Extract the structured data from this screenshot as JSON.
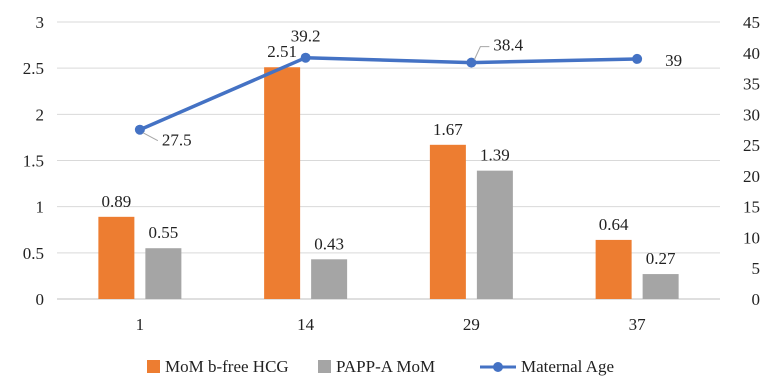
{
  "chart_data": {
    "type": "bar",
    "categories": [
      "1",
      "14",
      "29",
      "37"
    ],
    "series": [
      {
        "name": "MoM b-free HCG",
        "kind": "bar",
        "axis": "left",
        "color": "#ed7d31",
        "values": [
          0.89,
          2.51,
          1.67,
          0.64
        ],
        "labels": [
          "0.89",
          "2.51",
          "1.67",
          "0.64"
        ]
      },
      {
        "name": "PAPP-A MoM",
        "kind": "bar",
        "axis": "left",
        "color": "#a5a5a5",
        "values": [
          0.55,
          0.43,
          1.39,
          0.27
        ],
        "labels": [
          "0.55",
          "0.43",
          "1.39",
          "0.27"
        ]
      },
      {
        "name": "Maternal Age",
        "kind": "line",
        "axis": "right",
        "color": "#4472c4",
        "values": [
          27.5,
          39.2,
          38.4,
          39
        ],
        "labels": [
          "27.5",
          "39.2",
          "38.4",
          "39"
        ]
      }
    ],
    "y_left": {
      "min": 0,
      "max": 3,
      "ticks": [
        "0",
        "0.5",
        "1",
        "1.5",
        "2",
        "2.5",
        "3"
      ]
    },
    "y_right": {
      "min": 0,
      "max": 45,
      "ticks": [
        "0",
        "5",
        "10",
        "15",
        "20",
        "25",
        "30",
        "35",
        "40",
        "45"
      ]
    },
    "grid": true,
    "legend": "bottom"
  }
}
